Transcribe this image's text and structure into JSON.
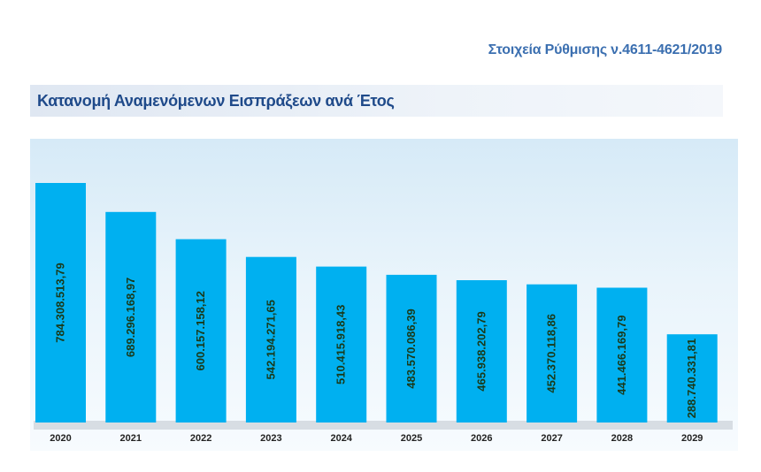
{
  "header": {
    "subtitle": "Στοιχεία Ρύθμισης ν.4611-4621/2019"
  },
  "chart_data": {
    "type": "bar",
    "title": "Κατανομή Αναμενόμενων Εισπράξεων ανά Έτος",
    "categories": [
      "2020",
      "2021",
      "2022",
      "2023",
      "2024",
      "2025",
      "2026",
      "2027",
      "2028",
      "2029"
    ],
    "values": [
      784308513.79,
      689296168.97,
      600157158.12,
      542194271.65,
      510415918.43,
      483570086.39,
      465938202.79,
      452370118.86,
      441466169.79,
      288740331.81
    ],
    "value_labels": [
      "784.308.513,79",
      "689.296.168,97",
      "600.157.158,12",
      "542.194.271,65",
      "510.415.918,43",
      "483.570.086,39",
      "465.938.202,79",
      "452.370.118,86",
      "441.466.169,79",
      "288.740.331,81"
    ],
    "xlabel": "",
    "ylabel": "",
    "ylim": [
      0,
      784308513.79
    ],
    "grid": false,
    "colors": {
      "bar": "#00b0f0"
    }
  }
}
